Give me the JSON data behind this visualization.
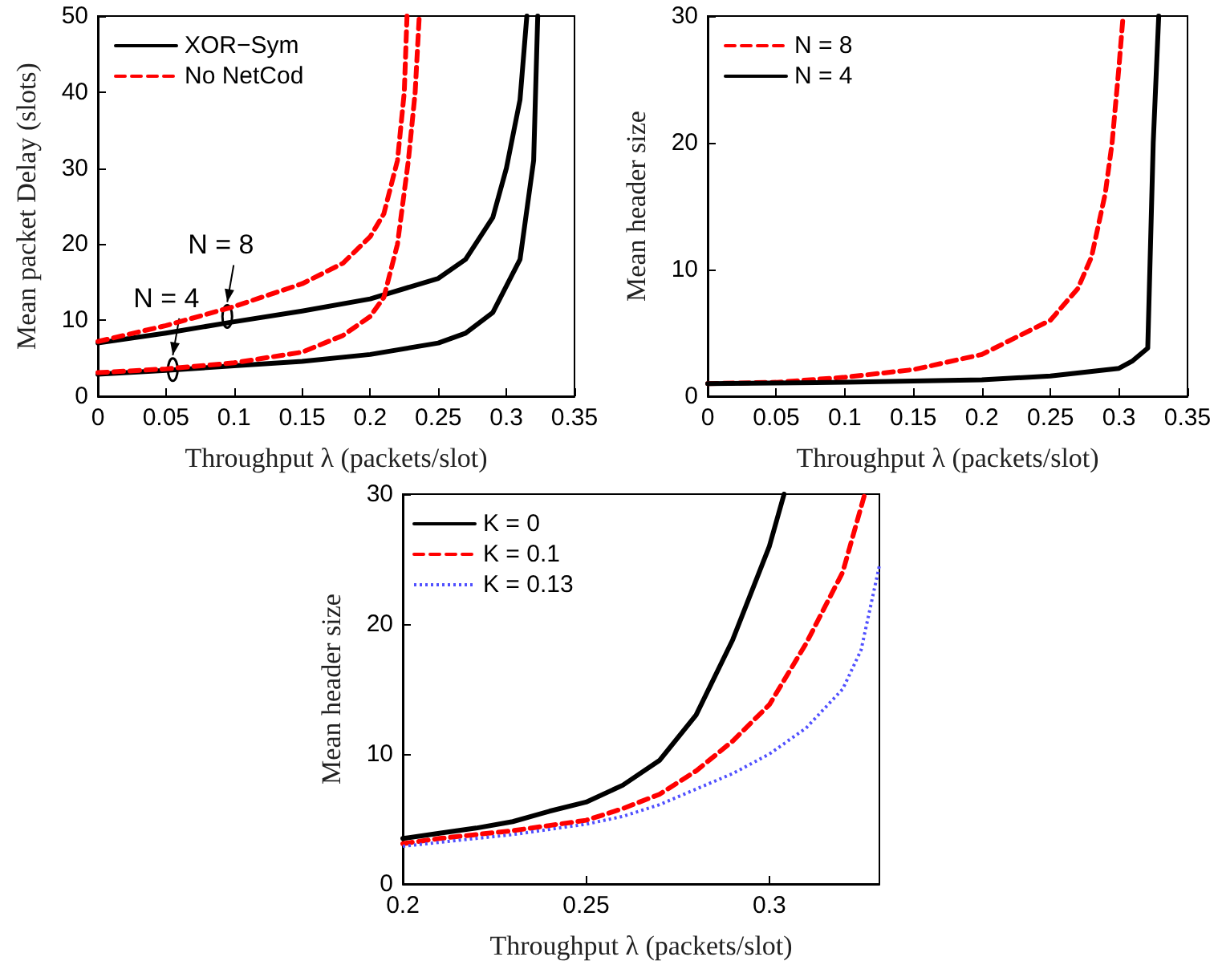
{
  "chart_data": [
    {
      "type": "line",
      "xlabel": "Throughput λ (packets/slot)",
      "ylabel": "Mean packet Delay (slots)",
      "xlim": [
        0,
        0.35
      ],
      "xticks": [
        0,
        0.05,
        0.1,
        0.15,
        0.2,
        0.25,
        0.3,
        0.35
      ],
      "ylim": [
        0,
        50
      ],
      "yticks": [
        0,
        10,
        20,
        30,
        40,
        50
      ],
      "grid": false,
      "legend": "top left",
      "annotations": [
        {
          "text": "N = 4",
          "x": 0.055,
          "y": 3.5
        },
        {
          "text": "N = 8",
          "x": 0.095,
          "y": 10.5
        }
      ],
      "series": [
        {
          "name": "XOR−Sym",
          "color": "#000000",
          "line_style": "solid",
          "x": [
            0,
            0.05,
            0.1,
            0.15,
            0.2,
            0.25,
            0.27,
            0.29,
            0.3,
            0.31,
            0.315
          ],
          "values": [
            7,
            8.3,
            9.8,
            11.2,
            12.8,
            15.5,
            18,
            23.5,
            30,
            39,
            50
          ]
        },
        {
          "color": "#000000",
          "line_style": "solid",
          "x": [
            0,
            0.05,
            0.1,
            0.15,
            0.2,
            0.25,
            0.27,
            0.29,
            0.31,
            0.32,
            0.323
          ],
          "values": [
            2.9,
            3.4,
            4,
            4.6,
            5.5,
            7,
            8.3,
            11,
            18,
            31,
            50
          ]
        },
        {
          "name": "No NetCod",
          "color": "#ff0000",
          "line_style": "dashed",
          "x": [
            0,
            0.05,
            0.1,
            0.15,
            0.18,
            0.2,
            0.21,
            0.22,
            0.225,
            0.227
          ],
          "values": [
            7.2,
            9.3,
            11.8,
            14.8,
            17.5,
            21,
            24,
            31,
            40,
            50
          ]
        },
        {
          "color": "#ff0000",
          "line_style": "dashed",
          "x": [
            0,
            0.05,
            0.1,
            0.15,
            0.18,
            0.2,
            0.21,
            0.22,
            0.228,
            0.233,
            0.236
          ],
          "values": [
            3.1,
            3.6,
            4.4,
            5.8,
            8,
            10.5,
            13,
            20,
            31,
            40,
            50
          ]
        }
      ]
    },
    {
      "type": "line",
      "xlabel": "Throughput λ (packets/slot)",
      "ylabel": "Mean header size",
      "xlim": [
        0,
        0.35
      ],
      "xticks": [
        0,
        0.05,
        0.1,
        0.15,
        0.2,
        0.25,
        0.3,
        0.35
      ],
      "ylim": [
        0,
        30
      ],
      "yticks": [
        0,
        10,
        20,
        30
      ],
      "grid": false,
      "legend": "top left",
      "series": [
        {
          "name": "N = 8",
          "color": "#ff0000",
          "line_style": "dashed",
          "x": [
            0,
            0.05,
            0.1,
            0.15,
            0.2,
            0.25,
            0.27,
            0.28,
            0.29,
            0.295,
            0.3,
            0.303
          ],
          "values": [
            1,
            1.1,
            1.5,
            2.1,
            3.3,
            6,
            8.5,
            11,
            16,
            20,
            26,
            30
          ]
        },
        {
          "name": "N = 4",
          "color": "#000000",
          "line_style": "solid",
          "x": [
            0,
            0.1,
            0.2,
            0.25,
            0.3,
            0.31,
            0.321,
            0.325,
            0.329
          ],
          "values": [
            1,
            1.1,
            1.3,
            1.6,
            2.2,
            2.8,
            3.8,
            20,
            30
          ]
        }
      ]
    },
    {
      "type": "line",
      "xlabel": "Throughput λ (packets/slot)",
      "ylabel": "Mean header size",
      "xlim": [
        0.2,
        0.33
      ],
      "xticks": [
        0.2,
        0.25,
        0.3
      ],
      "ylim": [
        0,
        30
      ],
      "yticks": [
        0,
        10,
        20,
        30
      ],
      "grid": false,
      "legend": "top left",
      "series": [
        {
          "name": "K = 0",
          "color": "#000000",
          "line_style": "solid",
          "x": [
            0.2,
            0.21,
            0.22,
            0.23,
            0.24,
            0.25,
            0.26,
            0.27,
            0.28,
            0.29,
            0.3,
            0.304
          ],
          "values": [
            3.5,
            3.9,
            4.3,
            4.8,
            5.6,
            6.3,
            7.6,
            9.5,
            13,
            18.8,
            26,
            30
          ]
        },
        {
          "name": "K = 0.1",
          "color": "#ff0000",
          "line_style": "dashed",
          "x": [
            0.2,
            0.21,
            0.22,
            0.23,
            0.24,
            0.25,
            0.26,
            0.27,
            0.28,
            0.29,
            0.3,
            0.31,
            0.32,
            0.326
          ],
          "values": [
            3.1,
            3.5,
            3.8,
            4.1,
            4.5,
            4.9,
            5.8,
            6.9,
            8.7,
            11,
            13.8,
            18.5,
            24,
            30
          ]
        },
        {
          "name": "K = 0.13",
          "color": "#5050ff",
          "line_style": "dotted",
          "x": [
            0.2,
            0.21,
            0.22,
            0.23,
            0.24,
            0.25,
            0.26,
            0.27,
            0.28,
            0.29,
            0.3,
            0.31,
            0.32,
            0.325,
            0.33
          ],
          "values": [
            2.9,
            3.2,
            3.5,
            3.8,
            4.2,
            4.6,
            5.2,
            6.1,
            7.3,
            8.5,
            10,
            12,
            15,
            18,
            24.5
          ]
        }
      ]
    }
  ]
}
